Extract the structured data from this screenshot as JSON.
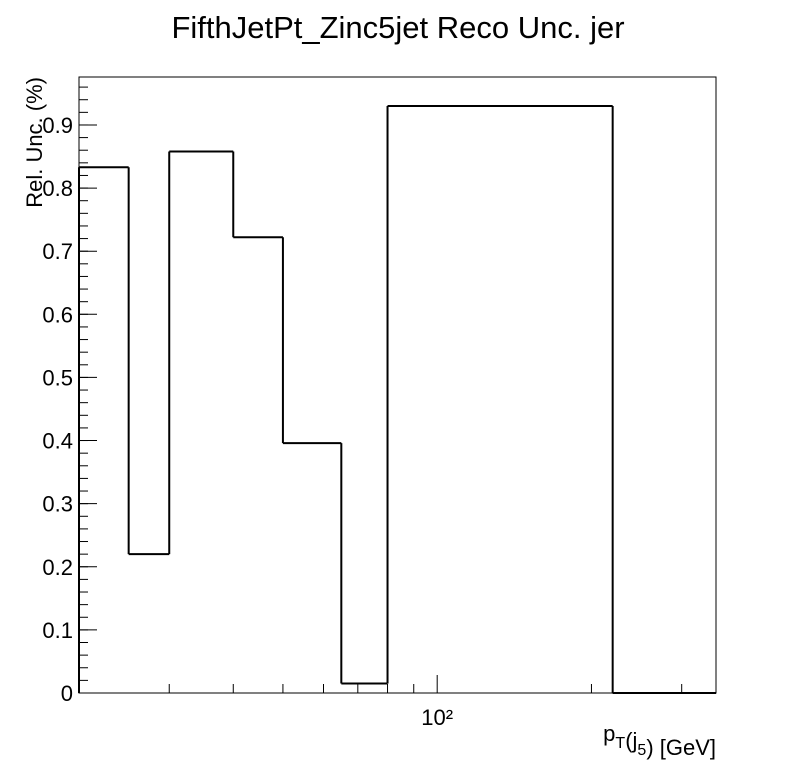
{
  "chart_data": {
    "type": "histogram",
    "title": "FifthJetPt_Zinc5jet Reco Unc. jer",
    "xlabel": "p_T(j_5) [GeV]",
    "ylabel": "Rel. Unc. (%)",
    "bins": [
      20,
      25,
      30,
      40,
      50,
      65,
      80,
      220,
      350
    ],
    "values": [
      0.833,
      0.22,
      0.858,
      0.722,
      0.396,
      0.015,
      0.93,
      0.0
    ],
    "color": "#000000",
    "xlog": true,
    "xlim": [
      20,
      350
    ],
    "xticks": [
      {
        "value": 100,
        "label": "10²"
      }
    ],
    "xminor_ticks": [
      30,
      40,
      50,
      60,
      70,
      80,
      90,
      200,
      300
    ],
    "ylim": [
      0,
      0.976
    ],
    "yticks": [
      0,
      0.1,
      0.2,
      0.3,
      0.4,
      0.5,
      0.6,
      0.7,
      0.8,
      0.9
    ],
    "grid": false
  }
}
